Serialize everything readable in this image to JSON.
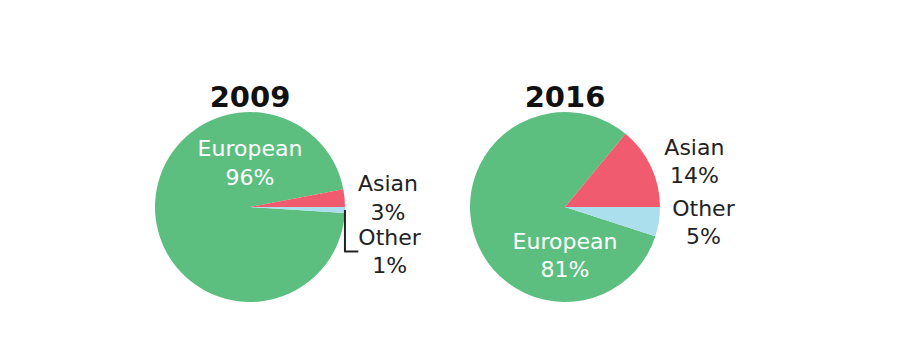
{
  "chart_data": [
    {
      "type": "pie",
      "title": "2009",
      "categories": [
        "European",
        "Asian",
        "Other"
      ],
      "values": [
        96,
        3,
        1
      ],
      "value_labels": [
        "96%",
        "3%",
        "1%"
      ],
      "colors": [
        "#5cbf7f",
        "#f05b6f",
        "#acdfee"
      ],
      "data_labels": true
    },
    {
      "type": "pie",
      "title": "2016",
      "categories": [
        "European",
        "Asian",
        "Other"
      ],
      "values": [
        81,
        14,
        5
      ],
      "value_labels": [
        "81%",
        "14%",
        "5%"
      ],
      "colors": [
        "#5cbf7f",
        "#f05b6f",
        "#acdfee"
      ],
      "data_labels": true
    }
  ]
}
